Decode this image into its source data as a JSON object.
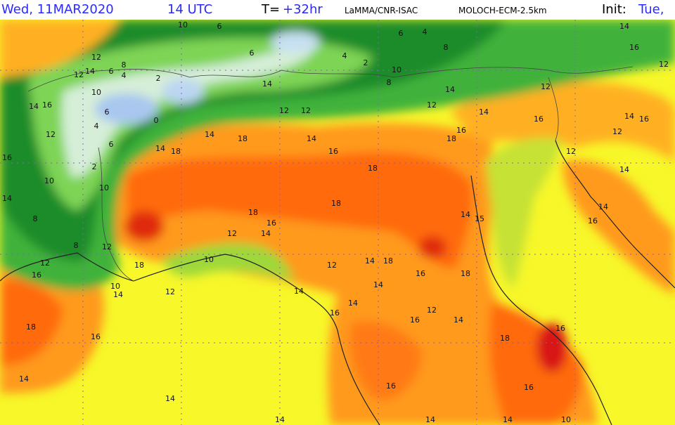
{
  "header": {
    "date": "Wed, 11MAR2020",
    "time": "14 UTC",
    "lead_label": "T=",
    "lead": "+32hr",
    "institute": "LaMMA/CNR-ISAC",
    "model": "MOLOCH-ECM-2.5km",
    "init_label": "Init:",
    "init": "Tue,"
  },
  "map": {
    "contour_labels": [
      12,
      14,
      6,
      8,
      4,
      12,
      2,
      10,
      14,
      16,
      6,
      12,
      4,
      6,
      2,
      10,
      10,
      8,
      8,
      12,
      18,
      10,
      14,
      12,
      10,
      12,
      14,
      16,
      18,
      14,
      18,
      18,
      14,
      14,
      16,
      18,
      18,
      14,
      18,
      12,
      16,
      18,
      14,
      15,
      18,
      16,
      14,
      16,
      12,
      14,
      16,
      12,
      12,
      14,
      14,
      16,
      14,
      16,
      14,
      14,
      12,
      16,
      14,
      18,
      16,
      18,
      16,
      14,
      14,
      14,
      16,
      14,
      14,
      16,
      10,
      10,
      12,
      14,
      8,
      14,
      16,
      12,
      6,
      4,
      8,
      2,
      4,
      12,
      12,
      14,
      6,
      6,
      10,
      0,
      16,
      14,
      16,
      12
    ]
  }
}
